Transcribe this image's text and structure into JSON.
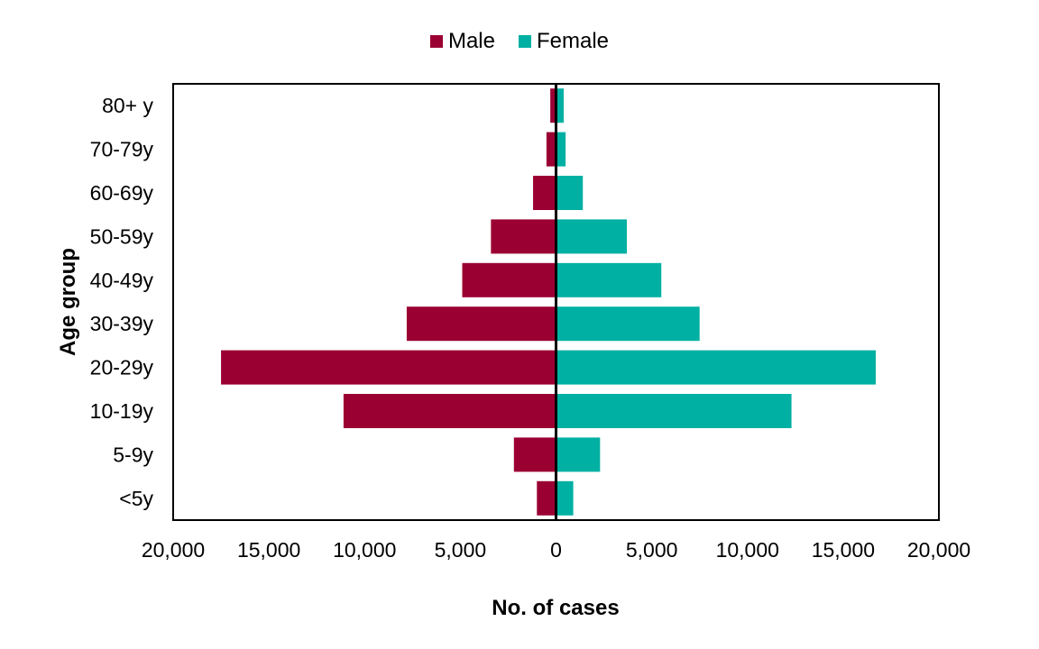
{
  "chart_data": {
    "type": "bar",
    "orientation": "horizontal-population-pyramid",
    "categories": [
      "<5y",
      "5-9y",
      "10-19y",
      "20-29y",
      "30-39y",
      "40-49y",
      "50-59y",
      "60-69y",
      "70-79y",
      "80+ y"
    ],
    "series": [
      {
        "name": "Male",
        "color": "#9b0033",
        "values": [
          1000,
          2200,
          11100,
          17500,
          7800,
          4900,
          3400,
          1200,
          500,
          300
        ]
      },
      {
        "name": "Female",
        "color": "#00b0a3",
        "values": [
          900,
          2300,
          12300,
          16700,
          7500,
          5500,
          3700,
          1400,
          500,
          400
        ]
      }
    ],
    "xlabel": "No. of cases",
    "ylabel": "Age group",
    "xlim": [
      -20000,
      20000
    ],
    "xticks": [
      -20000,
      -15000,
      -10000,
      -5000,
      0,
      5000,
      10000,
      15000,
      20000
    ],
    "xtick_labels": [
      "20,000",
      "15,000",
      "10,000",
      "5,000",
      "0",
      "5,000",
      "10,000",
      "15,000",
      "20,000"
    ],
    "legend_position": "top-center",
    "grid": false
  }
}
